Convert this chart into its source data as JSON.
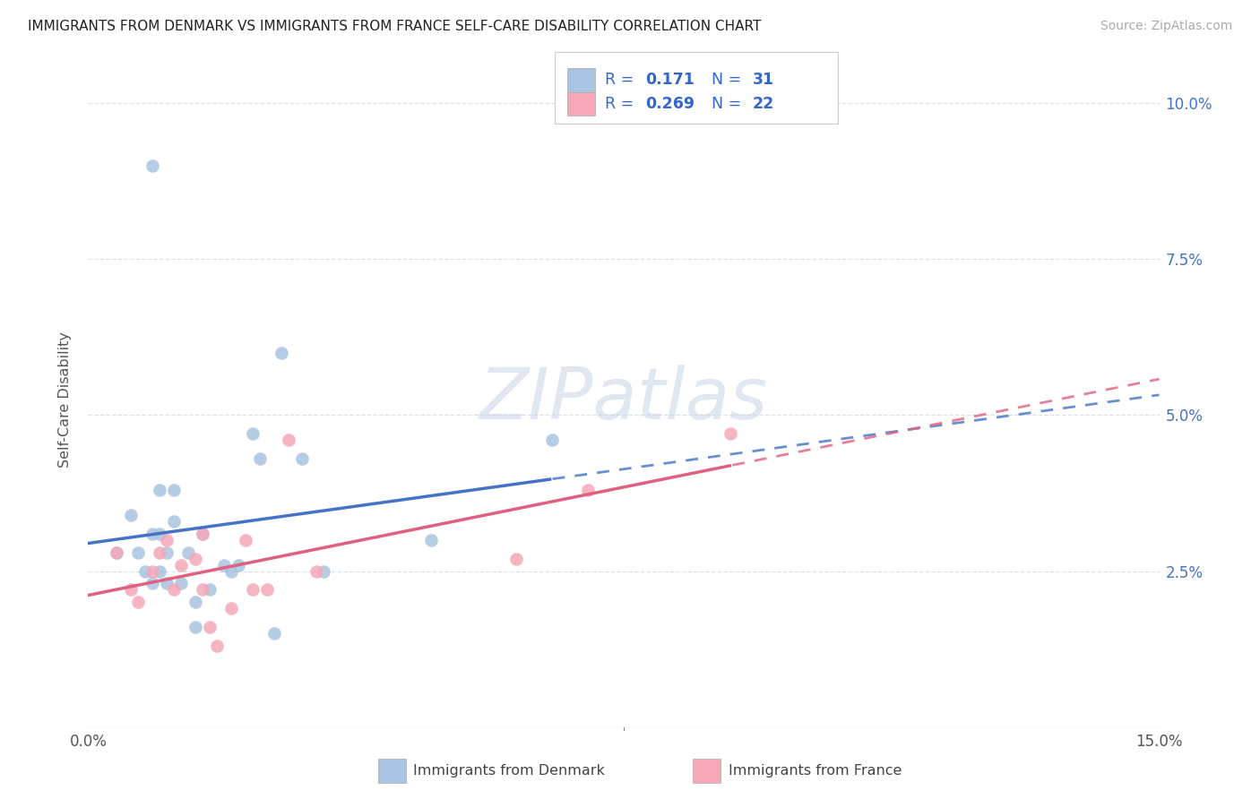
{
  "title": "IMMIGRANTS FROM DENMARK VS IMMIGRANTS FROM FRANCE SELF-CARE DISABILITY CORRELATION CHART",
  "source": "Source: ZipAtlas.com",
  "ylabel": "Self-Care Disability",
  "xlim": [
    0.0,
    0.15
  ],
  "ylim": [
    0.0,
    0.105
  ],
  "denmark_color": "#a8c4e0",
  "france_color": "#f4a8b8",
  "denmark_line_color": "#4472c4",
  "france_line_color": "#e06080",
  "legend_text_color": "#2255aa",
  "legend_label_color": "#333355",
  "denmark_R": "0.171",
  "denmark_N": "31",
  "france_R": "0.269",
  "france_N": "22",
  "denmark_scatter_x": [
    0.004,
    0.006,
    0.007,
    0.008,
    0.009,
    0.009,
    0.01,
    0.01,
    0.01,
    0.011,
    0.011,
    0.012,
    0.012,
    0.013,
    0.014,
    0.015,
    0.015,
    0.016,
    0.017,
    0.019,
    0.021,
    0.023,
    0.024,
    0.026,
    0.027,
    0.03,
    0.033,
    0.048,
    0.065,
    0.009,
    0.02
  ],
  "denmark_scatter_y": [
    0.028,
    0.034,
    0.028,
    0.025,
    0.031,
    0.023,
    0.031,
    0.025,
    0.038,
    0.028,
    0.023,
    0.038,
    0.033,
    0.023,
    0.028,
    0.02,
    0.016,
    0.031,
    0.022,
    0.026,
    0.026,
    0.047,
    0.043,
    0.015,
    0.06,
    0.043,
    0.025,
    0.03,
    0.046,
    0.09,
    0.025
  ],
  "france_scatter_x": [
    0.004,
    0.006,
    0.007,
    0.009,
    0.01,
    0.011,
    0.012,
    0.013,
    0.015,
    0.016,
    0.017,
    0.018,
    0.02,
    0.022,
    0.023,
    0.025,
    0.028,
    0.032,
    0.06,
    0.07,
    0.09,
    0.016
  ],
  "france_scatter_y": [
    0.028,
    0.022,
    0.02,
    0.025,
    0.028,
    0.03,
    0.022,
    0.026,
    0.027,
    0.022,
    0.016,
    0.013,
    0.019,
    0.03,
    0.022,
    0.022,
    0.046,
    0.025,
    0.027,
    0.038,
    0.047,
    0.031
  ],
  "background_color": "#ffffff",
  "grid_color": "#d8e0ee",
  "watermark_color": "#ccd8e8"
}
